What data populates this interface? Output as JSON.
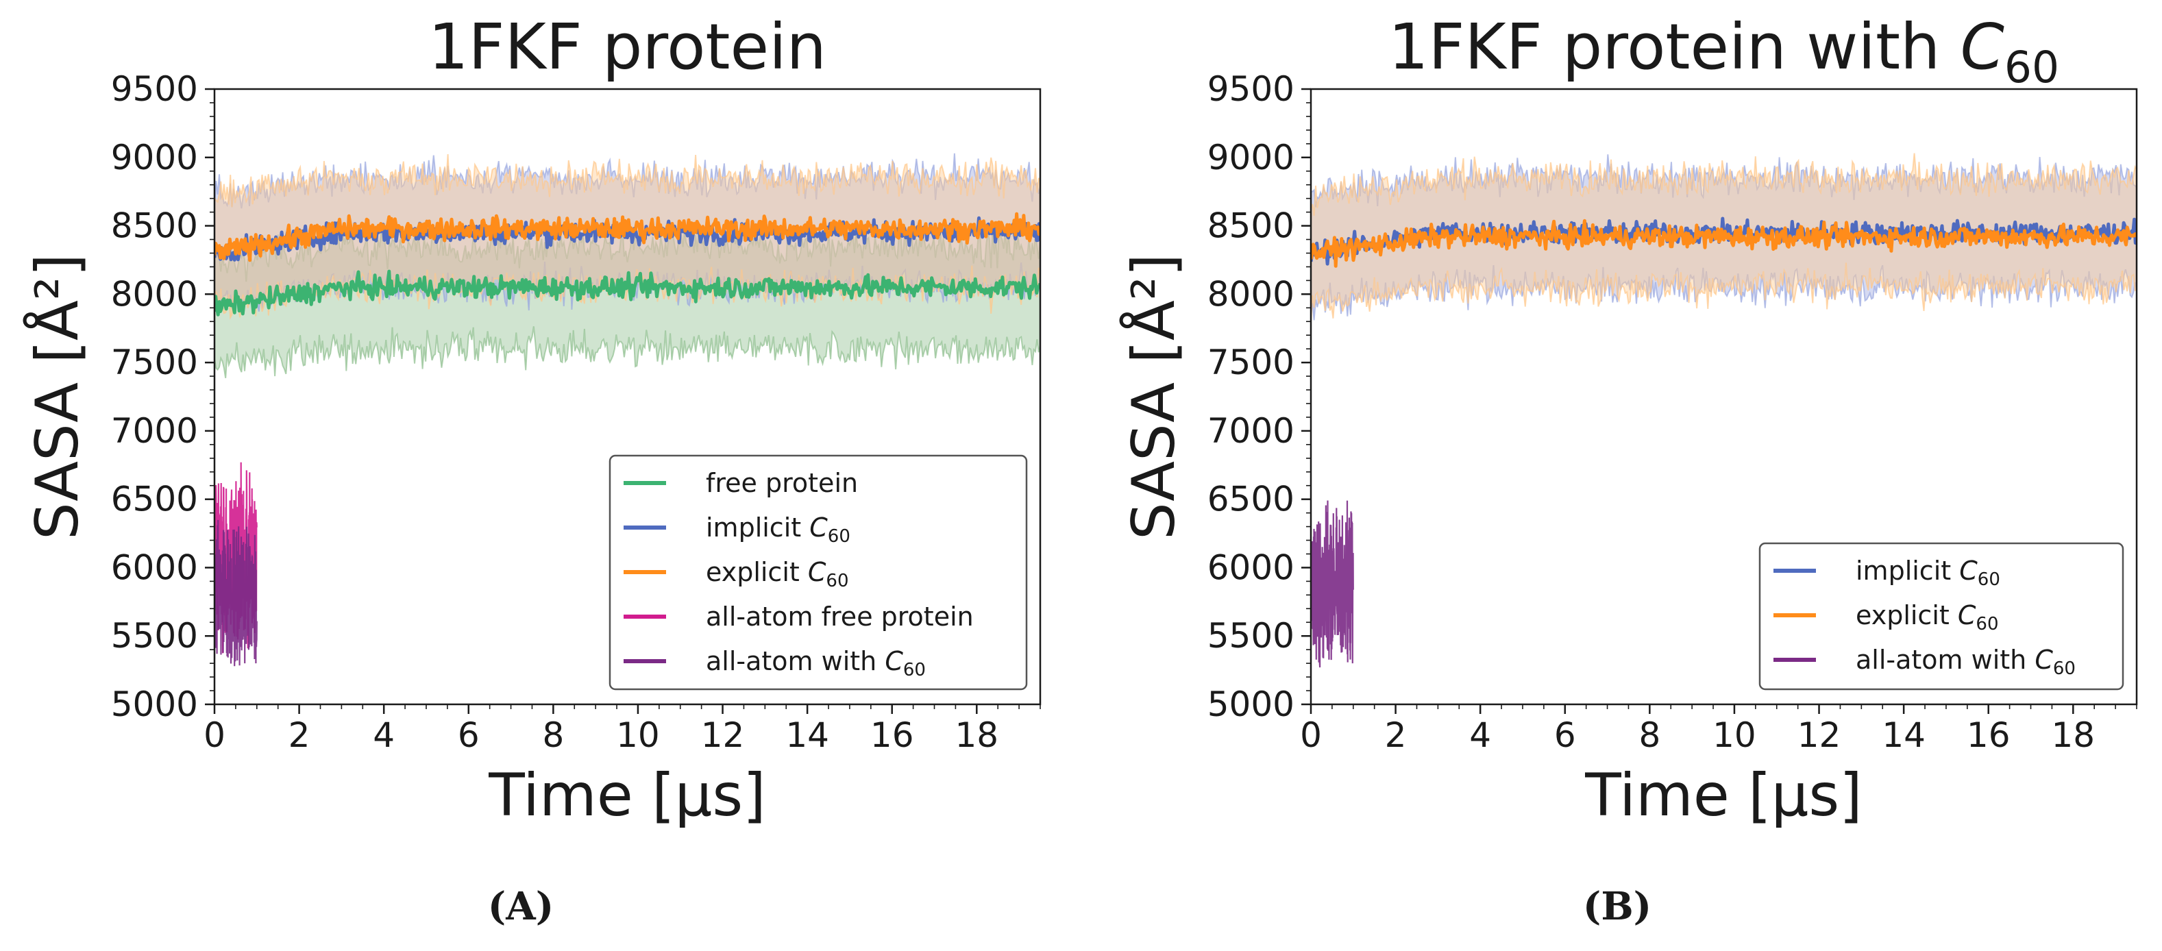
{
  "figure": {
    "panel_labels": [
      "(A)",
      "(B)"
    ]
  },
  "colors": {
    "free": "#3cb371",
    "implicit": "#4f6bbf",
    "explicit": "#ff8c1a",
    "aa_free": "#d11c8e",
    "aa_c60": "#7b2a86",
    "band_free": "#8fbf8f",
    "band_implicit": "#9aa8e0",
    "band_explicit": "#ffc88a"
  },
  "chart_data": [
    {
      "type": "line",
      "title": "1FKF protein",
      "xlabel": "Time [µs]",
      "ylabel": "SASA [Å²]",
      "xlim": [
        0,
        19.5
      ],
      "ylim": [
        5000,
        9500
      ],
      "xticks": [
        0,
        2,
        4,
        6,
        8,
        10,
        12,
        14,
        16,
        18
      ],
      "yticks": [
        5000,
        5500,
        6000,
        6500,
        7000,
        7500,
        8000,
        8500,
        9000,
        9500
      ],
      "legend_position": "lower-right",
      "series": [
        {
          "key": "free",
          "name": "free protein",
          "mean": 8050,
          "start": 7900,
          "std_band": [
            7600,
            8350
          ],
          "x": [
            0,
            19.5
          ]
        },
        {
          "key": "implicit",
          "name": "implicit C60",
          "mean": 8450,
          "start": 8300,
          "std_band": [
            8050,
            8850
          ],
          "x": [
            0,
            19.5
          ]
        },
        {
          "key": "explicit",
          "name": "explicit C60",
          "mean": 8480,
          "start": 8300,
          "std_band": [
            8050,
            8850
          ],
          "x": [
            0,
            19.5
          ]
        },
        {
          "key": "aa_free",
          "name": "all-atom free protein",
          "mean": 6050,
          "range": [
            5300,
            6750
          ],
          "x": [
            0,
            1
          ]
        },
        {
          "key": "aa_c60",
          "name": "all-atom with C60",
          "mean": 5800,
          "range": [
            5200,
            6400
          ],
          "x": [
            0,
            1
          ]
        }
      ]
    },
    {
      "type": "line",
      "title": "1FKF protein with C60",
      "xlabel": "Time [µs]",
      "ylabel": "SASA [Å²]",
      "xlim": [
        0,
        19.5
      ],
      "ylim": [
        5000,
        9500
      ],
      "xticks": [
        0,
        2,
        4,
        6,
        8,
        10,
        12,
        14,
        16,
        18
      ],
      "yticks": [
        5000,
        5500,
        6000,
        6500,
        7000,
        7500,
        8000,
        8500,
        9000,
        9500
      ],
      "legend_position": "lower-right",
      "series": [
        {
          "key": "implicit",
          "name": "implicit C60",
          "mean": 8450,
          "start": 8300,
          "std_band": [
            8050,
            8850
          ],
          "x": [
            0,
            19.5
          ]
        },
        {
          "key": "explicit",
          "name": "explicit C60",
          "mean": 8420,
          "start": 8300,
          "std_band": [
            8050,
            8850
          ],
          "x": [
            0,
            19.5
          ]
        },
        {
          "key": "aa_c60",
          "name": "all-atom with C60",
          "mean": 5850,
          "range": [
            5250,
            6550
          ],
          "x": [
            0,
            1
          ]
        }
      ]
    }
  ]
}
